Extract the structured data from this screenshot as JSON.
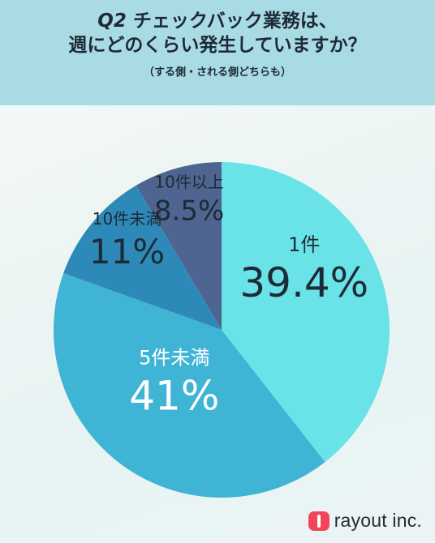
{
  "header": {
    "title_line1_prefix": "Q2",
    "title_line1_rest": " チェックバック業務は、",
    "title_line2": "週にどのくらい発生していますか？",
    "subtitle": "（する側・される側どちらも）"
  },
  "chart_data": {
    "type": "pie",
    "start": "12 o'clock, clockwise",
    "slices": [
      {
        "label": "1件",
        "value": 39.4,
        "value_label": "39.4%",
        "color": "#6ae3e8"
      },
      {
        "label": "5件未満",
        "value": 41,
        "value_label": "41%",
        "color": "#40b4d4"
      },
      {
        "label": "10件未満",
        "value": 11,
        "value_label": "11%",
        "color": "#2d8ab8"
      },
      {
        "label": "10件以上",
        "value": 8.5,
        "value_label": "8.5%",
        "color": "#4e6591"
      }
    ]
  },
  "logo": {
    "text": "rayout inc.",
    "mark_color": "#f0455a"
  }
}
